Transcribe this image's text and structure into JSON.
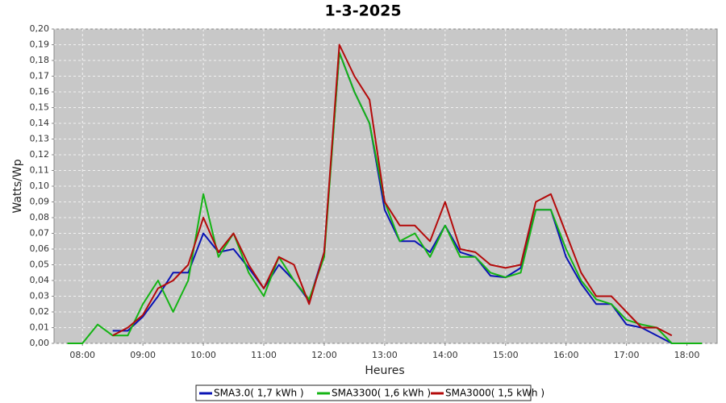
{
  "chart_data": {
    "type": "line",
    "title": "1-3-2025",
    "x_label": "Heures",
    "y_label": "Watts/Wp",
    "x": [
      7.75,
      8,
      8.25,
      8.5,
      8.75,
      9,
      9.25,
      9.5,
      9.75,
      10,
      10.25,
      10.5,
      10.75,
      11,
      11.25,
      11.5,
      11.75,
      12,
      12.25,
      12.5,
      12.75,
      13,
      13.25,
      13.5,
      13.75,
      14,
      14.25,
      14.5,
      14.75,
      15,
      15.25,
      15.5,
      15.75,
      16,
      16.25,
      16.5,
      16.75,
      17,
      17.25,
      17.5,
      17.75,
      18,
      18.25
    ],
    "series": [
      {
        "name": "SMA3.0( 1,7 kWh )",
        "color": "#0a14b4",
        "values": [
          null,
          null,
          null,
          0.008,
          0.008,
          0.017,
          0.03,
          0.045,
          0.045,
          0.07,
          0.058,
          0.06,
          0.048,
          0.035,
          0.05,
          0.04,
          0.027,
          0.058,
          0.185,
          0.16,
          0.14,
          0.085,
          0.065,
          0.065,
          0.058,
          0.075,
          0.058,
          0.055,
          0.043,
          0.042,
          0.048,
          0.085,
          0.085,
          0.055,
          0.038,
          0.025,
          0.025,
          0.012,
          0.01,
          0.005,
          0,
          null,
          null
        ]
      },
      {
        "name": "SMA3300( 1,6 kWh )",
        "color": "#14b414",
        "values": [
          0,
          0,
          0.012,
          0.005,
          0.005,
          0.025,
          0.04,
          0.02,
          0.04,
          0.095,
          0.055,
          0.07,
          0.045,
          0.03,
          0.055,
          0.04,
          0.028,
          0.055,
          0.185,
          0.16,
          0.14,
          0.09,
          0.065,
          0.07,
          0.055,
          0.075,
          0.055,
          0.055,
          0.045,
          0.042,
          0.045,
          0.085,
          0.085,
          0.06,
          0.04,
          0.028,
          0.025,
          0.015,
          0.012,
          0.01,
          0,
          0,
          0
        ]
      },
      {
        "name": "SMA3000( 1,5 kWh )",
        "color": "#b40a0a",
        "values": [
          null,
          null,
          null,
          0.005,
          0.01,
          0.018,
          0.035,
          0.04,
          0.05,
          0.08,
          0.058,
          0.07,
          0.05,
          0.035,
          0.055,
          0.05,
          0.025,
          0.058,
          0.19,
          0.17,
          0.155,
          0.09,
          0.075,
          0.075,
          0.065,
          0.09,
          0.06,
          0.058,
          0.05,
          0.048,
          0.05,
          0.09,
          0.095,
          0.07,
          0.045,
          0.03,
          0.03,
          0.02,
          0.01,
          0.01,
          0.005,
          null,
          null
        ]
      }
    ],
    "xlim": [
      7.53,
      18.5
    ],
    "xticks": [
      {
        "value": 8,
        "label": "08:00"
      },
      {
        "value": 9,
        "label": "09:00"
      },
      {
        "value": 10,
        "label": "10:00"
      },
      {
        "value": 11,
        "label": "11:00"
      },
      {
        "value": 12,
        "label": "12:00"
      },
      {
        "value": 13,
        "label": "13:00"
      },
      {
        "value": 14,
        "label": "14:00"
      },
      {
        "value": 15,
        "label": "15:00"
      },
      {
        "value": 16,
        "label": "16:00"
      },
      {
        "value": 17,
        "label": "17:00"
      },
      {
        "value": 18,
        "label": "18:00"
      }
    ],
    "ylim": [
      0,
      0.2
    ],
    "yticks": [
      {
        "value": 0,
        "label": "0,00"
      },
      {
        "value": 0.01,
        "label": "0,01"
      },
      {
        "value": 0.02,
        "label": "0,02"
      },
      {
        "value": 0.03,
        "label": "0,03"
      },
      {
        "value": 0.04,
        "label": "0,04"
      },
      {
        "value": 0.05,
        "label": "0,05"
      },
      {
        "value": 0.06,
        "label": "0,06"
      },
      {
        "value": 0.07,
        "label": "0,07"
      },
      {
        "value": 0.08,
        "label": "0,08"
      },
      {
        "value": 0.09,
        "label": "0,09"
      },
      {
        "value": 0.1,
        "label": "0,10"
      },
      {
        "value": 0.11,
        "label": "0,11"
      },
      {
        "value": 0.12,
        "label": "0,12"
      },
      {
        "value": 0.13,
        "label": "0,13"
      },
      {
        "value": 0.14,
        "label": "0,14"
      },
      {
        "value": 0.15,
        "label": "0,15"
      },
      {
        "value": 0.16,
        "label": "0,16"
      },
      {
        "value": 0.17,
        "label": "0,17"
      },
      {
        "value": 0.18,
        "label": "0,18"
      },
      {
        "value": 0.19,
        "label": "0,19"
      },
      {
        "value": 0.2,
        "label": "0,20"
      }
    ],
    "grid": true
  }
}
